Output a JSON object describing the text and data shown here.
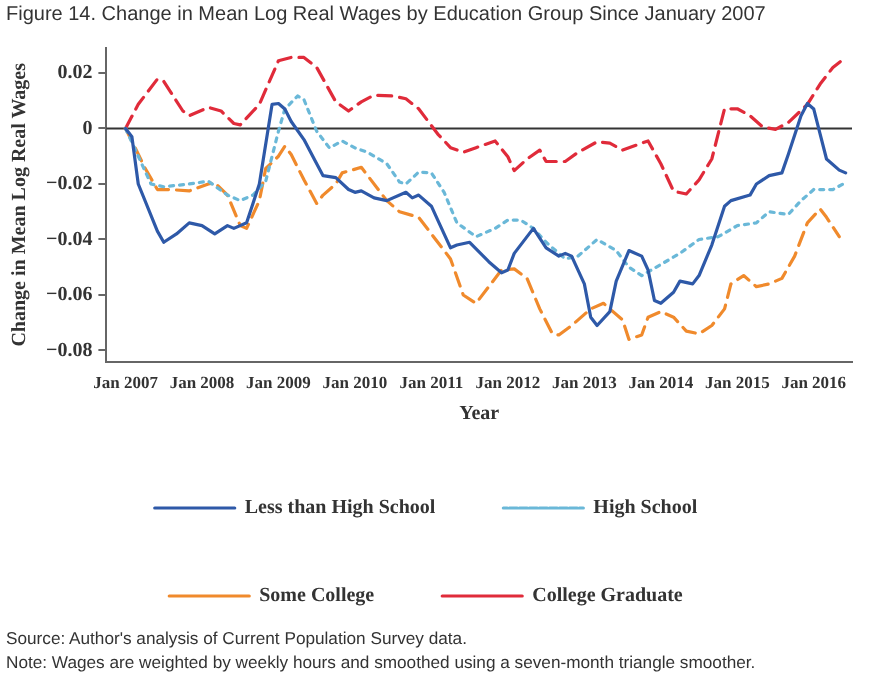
{
  "chart_data": {
    "type": "line",
    "title": "Figure 14. Change in Mean Log Real Wages by Education Group Since January 2007",
    "xlabel": "Year",
    "ylabel": "Change in Mean Log Real Wages",
    "xlim": [
      "2006-10",
      "2016-07"
    ],
    "xticks": [
      {
        "value": "2007-01",
        "label": "Jan 2007"
      },
      {
        "value": "2008-01",
        "label": "Jan 2008"
      },
      {
        "value": "2009-01",
        "label": "Jan 2009"
      },
      {
        "value": "2010-01",
        "label": "Jan 2010"
      },
      {
        "value": "2011-01",
        "label": "Jan 2011"
      },
      {
        "value": "2012-01",
        "label": "Jan 2012"
      },
      {
        "value": "2013-01",
        "label": "Jan 2013"
      },
      {
        "value": "2014-01",
        "label": "Jan 2014"
      },
      {
        "value": "2015-01",
        "label": "Jan 2015"
      },
      {
        "value": "2016-01",
        "label": "Jan 2016"
      }
    ],
    "ylim": [
      -0.084,
      0.029
    ],
    "yticks": [
      -0.08,
      -0.06,
      -0.04,
      -0.02,
      0,
      0.02
    ],
    "grid": false,
    "legend": "bottom",
    "marker": "none",
    "ref_lines": [
      {
        "axis": "y",
        "value": 0,
        "color": "#333333"
      }
    ],
    "series": [
      {
        "name": "Less than High School",
        "color": "#2e59a8",
        "line_style": "solid",
        "x": [
          "2007-01",
          "2007-02",
          "2007-03",
          "2007-06",
          "2007-07",
          "2007-09",
          "2007-11",
          "2008-01",
          "2008-03",
          "2008-05",
          "2008-06",
          "2008-08",
          "2008-09",
          "2008-10",
          "2008-12",
          "2009-01",
          "2009-02",
          "2009-03",
          "2009-05",
          "2009-07",
          "2009-08",
          "2009-10",
          "2009-12",
          "2010-01",
          "2010-02",
          "2010-04",
          "2010-06",
          "2010-09",
          "2010-10",
          "2010-11",
          "2011-01",
          "2011-02",
          "2011-04",
          "2011-05",
          "2011-07",
          "2011-10",
          "2011-12",
          "2012-01",
          "2012-02",
          "2012-05",
          "2012-07",
          "2012-09",
          "2012-10",
          "2012-11",
          "2013-01",
          "2013-02",
          "2013-03",
          "2013-05",
          "2013-06",
          "2013-08",
          "2013-10",
          "2013-11",
          "2013-12",
          "2014-01",
          "2014-03",
          "2014-04",
          "2014-06",
          "2014-07",
          "2014-09",
          "2014-11",
          "2014-12",
          "2015-03",
          "2015-04",
          "2015-06",
          "2015-08",
          "2015-09",
          "2015-11",
          "2015-12",
          "2016-01",
          "2016-02",
          "2016-03",
          "2016-05",
          "2016-06"
        ],
        "values": [
          0,
          -0.003,
          -0.02,
          -0.037,
          -0.041,
          -0.038,
          -0.034,
          -0.035,
          -0.038,
          -0.035,
          -0.036,
          -0.034,
          -0.027,
          -0.02,
          0.0087,
          0.009,
          0.007,
          0.0025,
          -0.004,
          -0.0127,
          -0.017,
          -0.0177,
          -0.022,
          -0.023,
          -0.0225,
          -0.025,
          -0.026,
          -0.023,
          -0.025,
          -0.024,
          -0.028,
          -0.033,
          -0.043,
          -0.042,
          -0.041,
          -0.048,
          -0.052,
          -0.051,
          -0.045,
          -0.036,
          -0.043,
          -0.046,
          -0.045,
          -0.046,
          -0.056,
          -0.068,
          -0.071,
          -0.066,
          -0.055,
          -0.044,
          -0.046,
          -0.051,
          -0.062,
          -0.063,
          -0.059,
          -0.055,
          -0.056,
          -0.053,
          -0.042,
          -0.028,
          -0.026,
          -0.024,
          -0.02,
          -0.017,
          -0.016,
          -0.0094,
          0.0046,
          0.009,
          0.007,
          -0.002,
          -0.011,
          -0.015,
          -0.016
        ]
      },
      {
        "name": "High School",
        "color": "#6ab8d8",
        "line_style": "dotted",
        "x": [
          "2007-01",
          "2007-05",
          "2007-07",
          "2007-11",
          "2008-02",
          "2008-05",
          "2008-07",
          "2008-09",
          "2008-11",
          "2009-01",
          "2009-02",
          "2009-04",
          "2009-05",
          "2009-07",
          "2009-09",
          "2009-11",
          "2010-01",
          "2010-03",
          "2010-06",
          "2010-08",
          "2010-09",
          "2010-11",
          "2011-01",
          "2011-03",
          "2011-05",
          "2011-08",
          "2011-11",
          "2012-01",
          "2012-03",
          "2012-05",
          "2012-07",
          "2012-10",
          "2012-12",
          "2013-03",
          "2013-06",
          "2013-08",
          "2013-10",
          "2014-01",
          "2014-04",
          "2014-07",
          "2014-10",
          "2015-01",
          "2015-04",
          "2015-06",
          "2015-09",
          "2015-11",
          "2016-01",
          "2016-04",
          "2016-06"
        ],
        "values": [
          0,
          -0.02,
          -0.021,
          -0.02,
          -0.019,
          -0.024,
          -0.026,
          -0.024,
          -0.019,
          -0.001,
          0.007,
          0.0117,
          0.0104,
          -0.001,
          -0.007,
          -0.0045,
          -0.007,
          -0.0086,
          -0.0127,
          -0.0193,
          -0.02,
          -0.0157,
          -0.016,
          -0.023,
          -0.034,
          -0.039,
          -0.036,
          -0.033,
          -0.033,
          -0.036,
          -0.041,
          -0.047,
          -0.046,
          -0.04,
          -0.044,
          -0.05,
          -0.053,
          -0.049,
          -0.045,
          -0.04,
          -0.039,
          -0.035,
          -0.034,
          -0.03,
          -0.031,
          -0.026,
          -0.022,
          -0.022,
          -0.0195
        ]
      },
      {
        "name": "Some College",
        "color": "#f08a2c",
        "line_style": "dashed",
        "x": [
          "2007-01",
          "2007-02",
          "2007-04",
          "2007-06",
          "2007-08",
          "2007-11",
          "2008-02",
          "2008-03",
          "2008-05",
          "2008-07",
          "2008-08",
          "2008-10",
          "2008-11",
          "2009-01",
          "2009-02",
          "2009-03",
          "2009-05",
          "2009-07",
          "2009-08",
          "2009-10",
          "2009-11",
          "2010-02",
          "2010-03",
          "2010-06",
          "2010-08",
          "2010-11",
          "2011-01",
          "2011-04",
          "2011-06",
          "2011-08",
          "2011-10",
          "2011-12",
          "2012-02",
          "2012-04",
          "2012-06",
          "2012-08",
          "2012-09",
          "2012-11",
          "2013-02",
          "2013-04",
          "2013-07",
          "2013-08",
          "2013-10",
          "2013-11",
          "2014-01",
          "2014-03",
          "2014-05",
          "2014-07",
          "2014-09",
          "2014-11",
          "2014-12",
          "2015-02",
          "2015-04",
          "2015-06",
          "2015-08",
          "2015-10",
          "2015-12",
          "2016-02",
          "2016-03",
          "2016-05"
        ],
        "values": [
          0,
          -0.0045,
          -0.014,
          -0.022,
          -0.022,
          -0.0225,
          -0.02,
          -0.0195,
          -0.024,
          -0.035,
          -0.036,
          -0.026,
          -0.0144,
          -0.01,
          -0.0064,
          -0.0094,
          -0.0185,
          -0.027,
          -0.024,
          -0.02,
          -0.016,
          -0.014,
          -0.017,
          -0.026,
          -0.03,
          -0.032,
          -0.038,
          -0.047,
          -0.06,
          -0.063,
          -0.057,
          -0.051,
          -0.0506,
          -0.054,
          -0.065,
          -0.074,
          -0.0744,
          -0.071,
          -0.065,
          -0.063,
          -0.069,
          -0.076,
          -0.0744,
          -0.068,
          -0.066,
          -0.068,
          -0.073,
          -0.074,
          -0.071,
          -0.065,
          -0.056,
          -0.053,
          -0.057,
          -0.056,
          -0.054,
          -0.046,
          -0.034,
          -0.029,
          -0.032,
          -0.039
        ]
      },
      {
        "name": "College Graduate",
        "color": "#e02b3a",
        "line_style": "dashed",
        "x": [
          "2007-01",
          "2007-03",
          "2007-06",
          "2007-07",
          "2007-10",
          "2007-11",
          "2008-02",
          "2008-04",
          "2008-06",
          "2008-07",
          "2008-10",
          "2009-01",
          "2009-03",
          "2009-05",
          "2009-07",
          "2009-10",
          "2009-12",
          "2010-02",
          "2010-04",
          "2010-07",
          "2010-09",
          "2010-11",
          "2011-02",
          "2011-04",
          "2011-06",
          "2011-08",
          "2011-11",
          "2012-01",
          "2012-02",
          "2012-04",
          "2012-06",
          "2012-07",
          "2012-10",
          "2012-12",
          "2013-03",
          "2013-05",
          "2013-07",
          "2013-10",
          "2013-11",
          "2014-01",
          "2014-03",
          "2014-05",
          "2014-07",
          "2014-09",
          "2014-11",
          "2015-01",
          "2015-03",
          "2015-05",
          "2015-07",
          "2015-09",
          "2015-12",
          "2016-02",
          "2016-04",
          "2016-06"
        ],
        "values": [
          0,
          0.0087,
          0.0178,
          0.017,
          0.0063,
          0.0046,
          0.0076,
          0.0063,
          0.0018,
          0.0013,
          0.0087,
          0.0244,
          0.0256,
          0.0256,
          0.022,
          0.0096,
          0.0063,
          0.0096,
          0.012,
          0.0117,
          0.0107,
          0.0071,
          -0.002,
          -0.0069,
          -0.0086,
          -0.0069,
          -0.0045,
          -0.0102,
          -0.0152,
          -0.011,
          -0.0078,
          -0.0119,
          -0.0119,
          -0.0086,
          -0.0048,
          -0.0053,
          -0.0078,
          -0.0053,
          -0.0045,
          -0.0127,
          -0.0226,
          -0.0236,
          -0.0185,
          -0.011,
          0.0071,
          0.0071,
          0.0046,
          0.0005,
          -0.0003,
          0.0021,
          0.0087,
          0.016,
          0.022,
          0.0256
        ]
      }
    ],
    "annotations": [
      "Source: Author's analysis of Current Population Survey data.",
      "Note: Wages are weighted by weekly hours and smoothed using a seven-month triangle smoother."
    ]
  }
}
